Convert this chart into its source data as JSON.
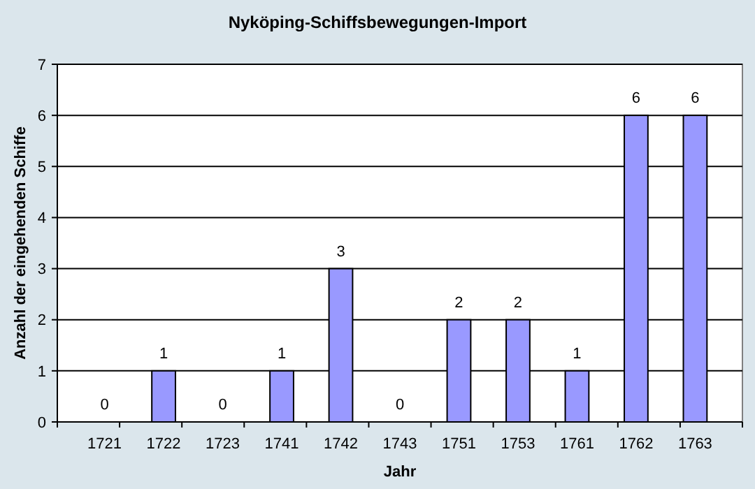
{
  "chart_data": {
    "type": "bar",
    "title": "Nyköping-Schiffsbewegungen-Import",
    "xlabel": "Jahr",
    "ylabel": "Anzahl der eingehenden Schiffe",
    "categories": [
      "1721",
      "1722",
      "1723",
      "1741",
      "1742",
      "1743",
      "1751",
      "1753",
      "1761",
      "1762",
      "1763"
    ],
    "values": [
      0,
      1,
      0,
      1,
      3,
      0,
      2,
      2,
      1,
      6,
      6
    ],
    "color": "#9999ff",
    "ylim": [
      0,
      7
    ],
    "yticks": [
      0,
      1,
      2,
      3,
      4,
      5,
      6,
      7
    ],
    "grid": "y",
    "data_labels": true
  }
}
